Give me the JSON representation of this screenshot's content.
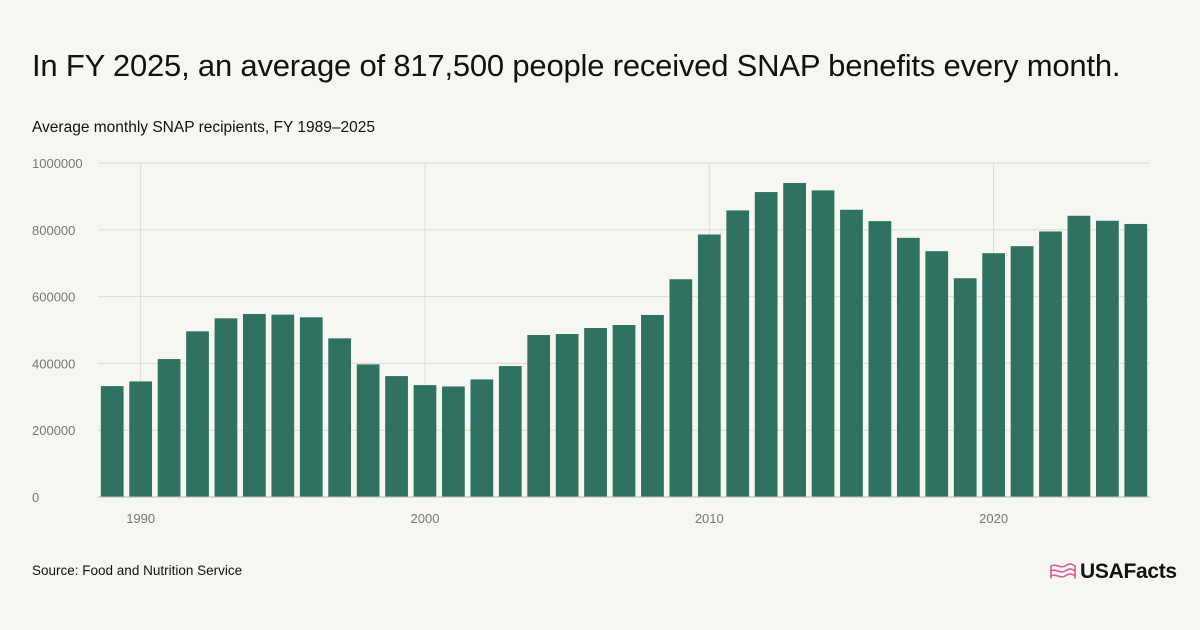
{
  "header": {
    "headline": "In FY 2025, an average of 817,500 people received SNAP benefits every month.",
    "subtitle": "Average monthly SNAP recipients, FY 1989–2025"
  },
  "footer": {
    "source": "Source: Food and Nutrition Service",
    "brand": "USAFacts"
  },
  "colors": {
    "bar": "#2f7262",
    "grid": "#dedbd3",
    "axis": "#bdbab2",
    "logo_flag": "#e0559b"
  },
  "icons": {
    "logo": "usafacts-flag-icon"
  },
  "chart_data": {
    "type": "bar",
    "title": "Average monthly SNAP recipients, FY 1989–2025",
    "xlabel": "",
    "ylabel": "",
    "x": [
      1989,
      1990,
      1991,
      1992,
      1993,
      1994,
      1995,
      1996,
      1997,
      1998,
      1999,
      2000,
      2001,
      2002,
      2003,
      2004,
      2005,
      2006,
      2007,
      2008,
      2009,
      2010,
      2011,
      2012,
      2013,
      2014,
      2015,
      2016,
      2017,
      2018,
      2019,
      2020,
      2021,
      2022,
      2023,
      2024,
      2025
    ],
    "values": [
      332000,
      346000,
      413000,
      496000,
      535000,
      548000,
      546000,
      538000,
      475000,
      397000,
      362000,
      335000,
      331000,
      352000,
      392000,
      485000,
      488000,
      506000,
      515000,
      545000,
      652000,
      786000,
      858000,
      913000,
      940000,
      918000,
      860000,
      826000,
      776000,
      736000,
      655000,
      730000,
      751000,
      795000,
      842000,
      827000,
      817500
    ],
    "ylim": [
      0,
      1000000
    ],
    "yticks": [
      0,
      200000,
      400000,
      600000,
      800000,
      1000000
    ],
    "ytick_labels": [
      "0",
      "200000",
      "400000",
      "600000",
      "800000",
      "1000000"
    ],
    "xticks": [
      1990,
      2000,
      2010,
      2020
    ],
    "xtick_labels": [
      "1990",
      "2000",
      "2010",
      "2020"
    ],
    "grid": true,
    "legend": "none"
  }
}
